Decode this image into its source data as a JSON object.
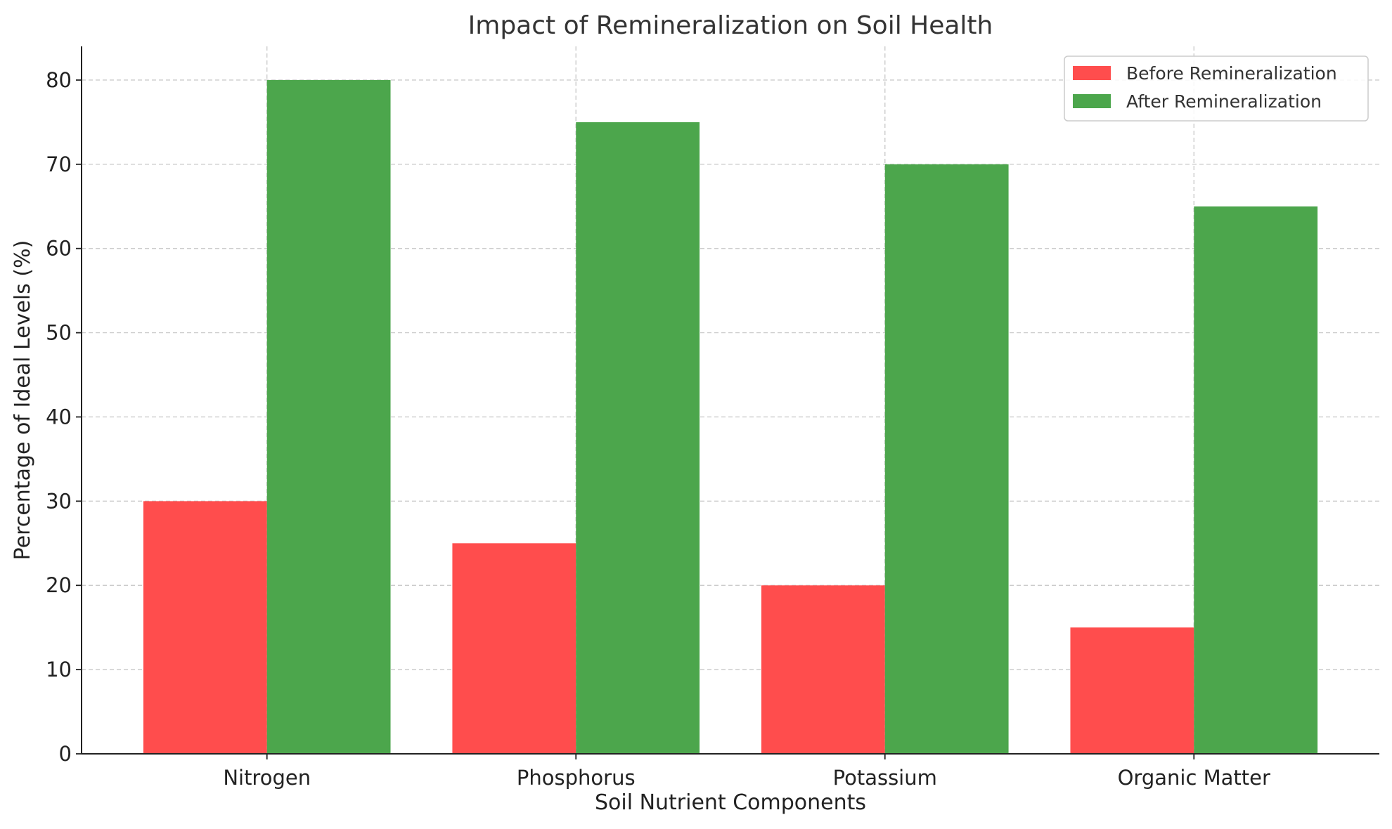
{
  "chart_data": {
    "type": "bar",
    "title": "Impact of Remineralization on Soil Health",
    "xlabel": "Soil Nutrient Components",
    "ylabel": "Percentage of Ideal Levels (%)",
    "categories": [
      "Nitrogen",
      "Phosphorus",
      "Potassium",
      "Organic Matter"
    ],
    "series": [
      {
        "name": "Before Remineralization",
        "values": [
          30,
          25,
          20,
          15
        ],
        "color": "#ff4d4d"
      },
      {
        "name": "After Remineralization",
        "values": [
          80,
          75,
          70,
          65
        ],
        "color": "#4ca64c"
      }
    ],
    "ylim": [
      0,
      84
    ],
    "yticks": [
      0,
      10,
      20,
      30,
      40,
      50,
      60,
      70,
      80
    ],
    "grid": true,
    "legend_position": "top-right"
  }
}
